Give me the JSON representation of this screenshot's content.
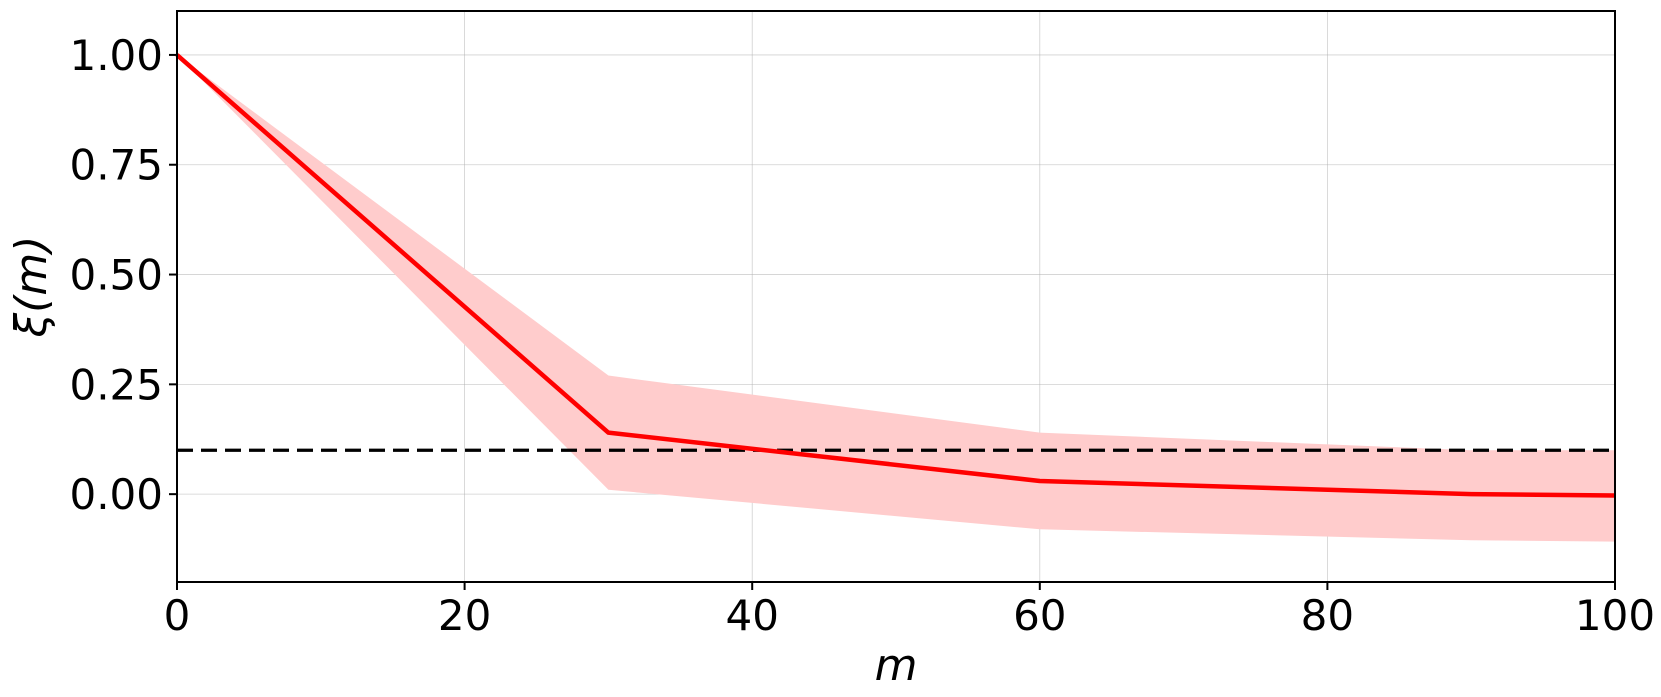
{
  "chart_data": {
    "type": "line",
    "xlabel": "m",
    "ylabel": "ξ(m)",
    "xlim": [
      0,
      100
    ],
    "ylim": [
      -0.2,
      1.1
    ],
    "xticks": [
      0,
      20,
      40,
      60,
      80,
      100
    ],
    "yticks": [
      0.0,
      0.25,
      0.5,
      0.75,
      1.0
    ],
    "xtick_labels": [
      "0",
      "20",
      "40",
      "60",
      "80",
      "100"
    ],
    "ytick_labels": [
      "0.00",
      "0.25",
      "0.50",
      "0.75",
      "1.00"
    ],
    "grid": true,
    "series": [
      {
        "x": [
          0,
          30,
          60,
          90,
          100
        ],
        "y": [
          1.0,
          0.14,
          0.03,
          0.0,
          -0.003
        ],
        "band_upper": [
          1.0,
          0.27,
          0.14,
          0.1,
          0.1
        ],
        "band_lower": [
          1.0,
          0.01,
          -0.08,
          -0.105,
          -0.108
        ],
        "color": "#ff0000",
        "band_color": "#ffcccc"
      }
    ],
    "reference_line": {
      "y": 0.1,
      "style": "dashed",
      "color": "#000000"
    }
  }
}
